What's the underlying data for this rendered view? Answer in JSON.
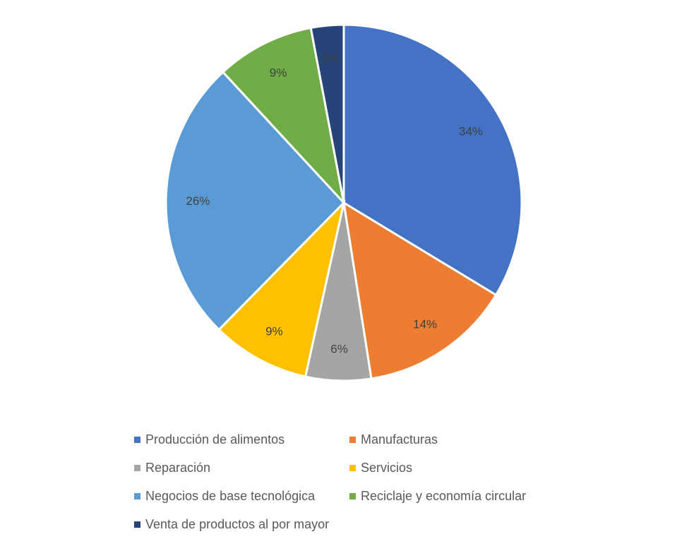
{
  "chart_data": {
    "type": "pie",
    "legend_position": "bottom",
    "slices": [
      {
        "label": "Producción de alimentos",
        "value": 34,
        "display": "34%",
        "color": "#4472C4"
      },
      {
        "label": "Manufacturas",
        "value": 14,
        "display": "14%",
        "color": "#ED7D31"
      },
      {
        "label": "Reparación",
        "value": 6,
        "display": "6%",
        "color": "#A5A5A5"
      },
      {
        "label": "Servicios",
        "value": 9,
        "display": "9%",
        "color": "#FFC000"
      },
      {
        "label": "Negocios de base tecnológica",
        "value": 26,
        "display": "26%",
        "color": "#5B9BD5"
      },
      {
        "label": "Reciclaje y economía circular",
        "value": 9,
        "display": "9%",
        "color": "#70AD47"
      },
      {
        "label": "Venta de productos al por mayor",
        "value": 3,
        "display": "3%",
        "color": "#264478"
      }
    ]
  }
}
